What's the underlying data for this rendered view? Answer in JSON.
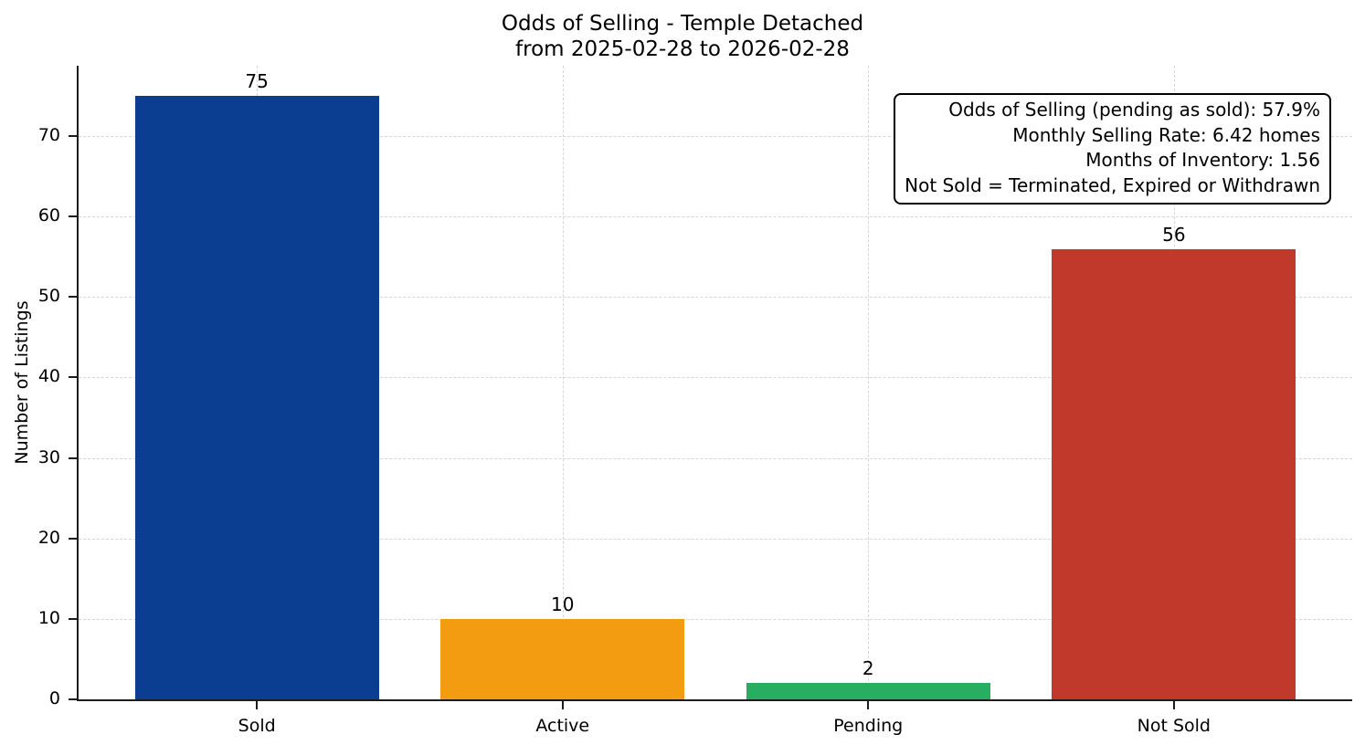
{
  "title": {
    "line1": "Odds of Selling - Temple Detached",
    "line2": "from 2025-02-28 to 2026-02-28"
  },
  "chart_data": {
    "type": "bar",
    "title": "Odds of Selling - Temple Detached",
    "subtitle": "from 2025-02-28 to 2026-02-28",
    "categories": [
      "Sold",
      "Active",
      "Pending",
      "Not Sold"
    ],
    "values": [
      75,
      10,
      2,
      56
    ],
    "bar_labels": [
      "75",
      "10",
      "2",
      "56"
    ],
    "bar_colors": [
      "#0b3d91",
      "#f39c12",
      "#27ae60",
      "#c0392b"
    ],
    "xlabel": "",
    "ylabel": "Number of Listings",
    "yticks": [
      0,
      10,
      20,
      30,
      40,
      50,
      60,
      70
    ],
    "ylim": [
      0,
      78.75
    ],
    "grid": {
      "style": "dashed",
      "color": "#d6d6d6",
      "axes": "both"
    },
    "legend": null,
    "annotation": {
      "position": "top-right",
      "lines": [
        "Odds of Selling (pending as sold): 57.9%",
        "Monthly Selling Rate: 6.42 homes",
        "Months of Inventory: 1.56",
        "Not Sold = Terminated, Expired or Withdrawn"
      ]
    }
  }
}
